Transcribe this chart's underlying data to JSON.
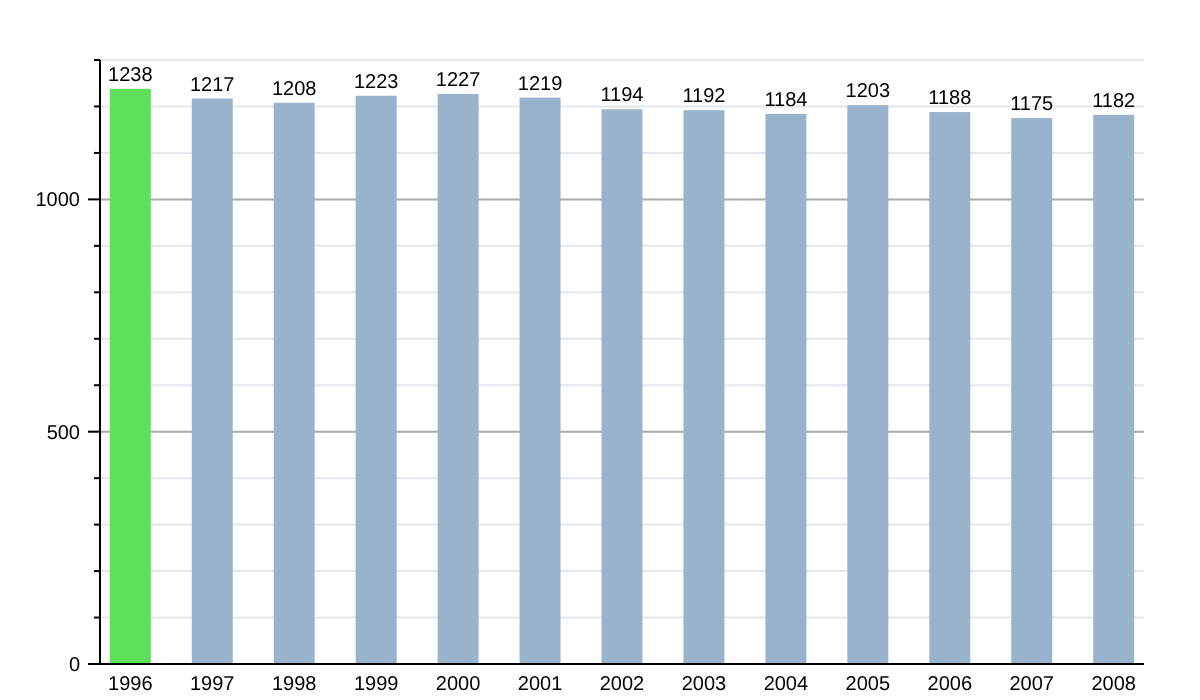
{
  "chart_data": {
    "type": "bar",
    "categories": [
      "1996",
      "1997",
      "1998",
      "1999",
      "2000",
      "2001",
      "2002",
      "2003",
      "2004",
      "2005",
      "2006",
      "2007",
      "2008"
    ],
    "values": [
      1238,
      1217,
      1208,
      1223,
      1227,
      1219,
      1194,
      1192,
      1184,
      1203,
      1188,
      1175,
      1182
    ],
    "colors": [
      "#5fe05a",
      "#9ab3cc",
      "#9ab3cc",
      "#9ab3cc",
      "#9ab3cc",
      "#9ab3cc",
      "#9ab3cc",
      "#9ab3cc",
      "#9ab3cc",
      "#9ab3cc",
      "#9ab3cc",
      "#9ab3cc",
      "#9ab3cc"
    ],
    "ylim": [
      0,
      1300
    ],
    "yticks": [
      0,
      {
        "value": 100,
        "label": null
      },
      {
        "value": 200,
        "label": null
      },
      {
        "value": 300,
        "label": null
      },
      {
        "value": 400,
        "label": null
      },
      500,
      {
        "value": 600,
        "label": null
      },
      {
        "value": 700,
        "label": null
      },
      {
        "value": 800,
        "label": null
      },
      {
        "value": 900,
        "label": null
      },
      1000,
      {
        "value": 1100,
        "label": null
      },
      {
        "value": 1200,
        "label": null
      },
      {
        "value": 1300,
        "label": null
      }
    ],
    "grid": true,
    "data_labels": true
  }
}
